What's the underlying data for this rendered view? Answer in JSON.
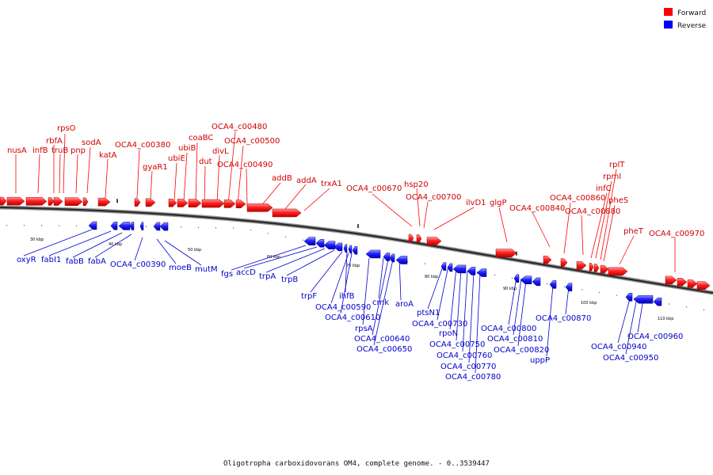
{
  "legend": {
    "forward": {
      "label": "Forward",
      "color": "#ff0000"
    },
    "reverse": {
      "label": "Reverse",
      "color": "#0000ff"
    }
  },
  "caption": "Oligotropha carboxidovorans OM4, complete genome. - 0..3539447",
  "scale_labels": [
    "30 kbp",
    "40 kbp",
    "50 kbp",
    "60 kbp",
    "70 kbp",
    "80 kbp",
    "90 kbp",
    "100 kbp",
    "110 kbp"
  ],
  "forward_labels": [
    "nusA",
    "infB",
    "rbfA",
    "rpsO",
    "truB",
    "pnp",
    "sodA",
    "katA",
    "OCA4_c00380",
    "gyaR1",
    "ubiE",
    "ubiB",
    "coaBC",
    "dut",
    "divL",
    "OCA4_c00480",
    "OCA4_c00500",
    "OCA4_c00490",
    "addB",
    "addA",
    "trxA1",
    "OCA4_c00670",
    "hsp20",
    "OCA4_c00700",
    "ilvD1",
    "glgP",
    "OCA4_c00840",
    "OCA4_c00860",
    "OCA4_c00880",
    "infC",
    "rpmI",
    "rplT",
    "pheS",
    "pheT",
    "OCA4_c00970"
  ],
  "reverse_labels": [
    "oxyR",
    "fabI1",
    "fabB",
    "fabA",
    "OCA4_c00390",
    "moeB",
    "mutM",
    "fgs",
    "accD",
    "trpA",
    "trpB",
    "trpF",
    "ihfB",
    "OCA4_c00590",
    "OCA4_c00610",
    "rpsA",
    "cmk",
    "aroA",
    "OCA4_c00640",
    "OCA4_c00650",
    "ptsN1",
    "OCA4_c00730",
    "rpoN",
    "OCA4_c00750",
    "OCA4_c00760",
    "OCA4_c00770",
    "OCA4_c00780",
    "OCA4_c00800",
    "OCA4_c00810",
    "OCA4_c00820",
    "uppP",
    "OCA4_c00870",
    "OCA4_c00940",
    "OCA4_c00960",
    "OCA4_c00950"
  ]
}
